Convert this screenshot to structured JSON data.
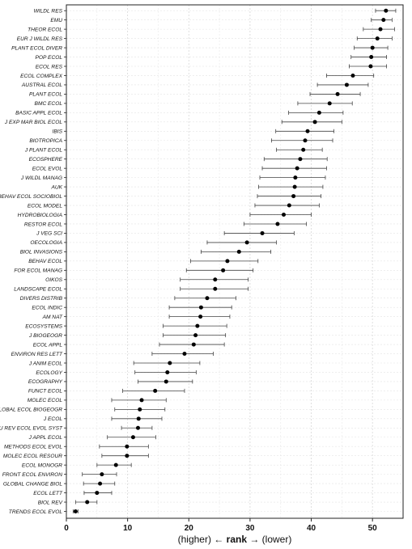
{
  "chart_data": {
    "type": "scatter",
    "xlabel": {
      "left": "(higher) ← ",
      "mid": "rank",
      "right": " → (lower)"
    },
    "xlim": [
      0,
      55
    ],
    "xticks": [
      0,
      10,
      20,
      30,
      40,
      50
    ],
    "grid": true,
    "series": [
      {
        "label": "WILDL RES",
        "mean": 52.2,
        "lo": 50.5,
        "hi": 53.8
      },
      {
        "label": "EMU",
        "mean": 51.8,
        "lo": 49.8,
        "hi": 53.2
      },
      {
        "label": "THEOR ECOL",
        "mean": 51.3,
        "lo": 48.5,
        "hi": 53.6
      },
      {
        "label": "EUR J WILDL RES",
        "mean": 50.8,
        "lo": 47.5,
        "hi": 53.2
      },
      {
        "label": "PLANT ECOL DIVER",
        "mean": 50.0,
        "lo": 47.0,
        "hi": 52.5
      },
      {
        "label": "POP ECOL",
        "mean": 49.8,
        "lo": 46.5,
        "hi": 52.3
      },
      {
        "label": "ECOL RES",
        "mean": 49.7,
        "lo": 46.2,
        "hi": 52.3
      },
      {
        "label": "ECOL COMPLEX",
        "mean": 46.8,
        "lo": 42.5,
        "hi": 50.2
      },
      {
        "label": "AUSTRAL ECOL",
        "mean": 45.8,
        "lo": 41.0,
        "hi": 49.3
      },
      {
        "label": "PLANT ECOL",
        "mean": 44.3,
        "lo": 39.8,
        "hi": 48.0
      },
      {
        "label": "BMC ECOL",
        "mean": 43.0,
        "lo": 37.8,
        "hi": 46.7
      },
      {
        "label": "BASIC APPL ECOL",
        "mean": 41.3,
        "lo": 36.3,
        "hi": 45.2
      },
      {
        "label": "J EXP MAR BIOL ECOL",
        "mean": 40.6,
        "lo": 35.2,
        "hi": 45.0
      },
      {
        "label": "IBIS",
        "mean": 39.4,
        "lo": 34.2,
        "hi": 43.7
      },
      {
        "label": "BIOTROPICA",
        "mean": 39.0,
        "lo": 33.5,
        "hi": 43.5
      },
      {
        "label": "J PLANT ECOL",
        "mean": 38.7,
        "lo": 34.3,
        "hi": 41.8
      },
      {
        "label": "ECOSPHERE",
        "mean": 38.2,
        "lo": 32.3,
        "hi": 42.6
      },
      {
        "label": "ECOL EVOL",
        "mean": 37.7,
        "lo": 32.0,
        "hi": 42.5
      },
      {
        "label": "J WILDL MANAG",
        "mean": 37.4,
        "lo": 31.6,
        "hi": 42.3
      },
      {
        "label": "AUK",
        "mean": 37.3,
        "lo": 31.4,
        "hi": 41.9
      },
      {
        "label": "BEHAV ECOL SOCIOBIOL",
        "mean": 37.1,
        "lo": 31.2,
        "hi": 41.6
      },
      {
        "label": "ECOL MODEL",
        "mean": 36.4,
        "lo": 30.8,
        "hi": 41.3
      },
      {
        "label": "HYDROBIOLOGIA",
        "mean": 35.5,
        "lo": 30.0,
        "hi": 40.0
      },
      {
        "label": "RESTOR ECOL",
        "mean": 34.5,
        "lo": 29.0,
        "hi": 39.2
      },
      {
        "label": "J VEG SCI",
        "mean": 32.0,
        "lo": 25.8,
        "hi": 37.2
      },
      {
        "label": "OECOLOGIA",
        "mean": 29.5,
        "lo": 23.0,
        "hi": 34.3
      },
      {
        "label": "BIOL INVASIONS",
        "mean": 28.2,
        "lo": 22.0,
        "hi": 33.4
      },
      {
        "label": "BEHAV ECOL",
        "mean": 26.3,
        "lo": 20.3,
        "hi": 31.3
      },
      {
        "label": "FOR ECOL MANAG",
        "mean": 25.6,
        "lo": 19.6,
        "hi": 30.5
      },
      {
        "label": "OIKOS",
        "mean": 24.3,
        "lo": 18.6,
        "hi": 29.7
      },
      {
        "label": "LANDSCAPE ECOL",
        "mean": 24.3,
        "lo": 18.6,
        "hi": 29.7
      },
      {
        "label": "DIVERS DISTRIB",
        "mean": 23.0,
        "lo": 17.7,
        "hi": 27.7
      },
      {
        "label": "ECOL INDIC",
        "mean": 22.0,
        "lo": 16.8,
        "hi": 27.0
      },
      {
        "label": "AM NAT",
        "mean": 21.9,
        "lo": 16.8,
        "hi": 26.7
      },
      {
        "label": "ECOSYSTEMS",
        "mean": 21.4,
        "lo": 15.8,
        "hi": 26.2
      },
      {
        "label": "J BIOGEOGR",
        "mean": 21.1,
        "lo": 15.8,
        "hi": 26.0
      },
      {
        "label": "ECOL APPL",
        "mean": 20.8,
        "lo": 15.2,
        "hi": 25.8
      },
      {
        "label": "ENVIRON RES LETT",
        "mean": 19.3,
        "lo": 14.0,
        "hi": 24.0
      },
      {
        "label": "J ANIM ECOL",
        "mean": 16.9,
        "lo": 11.0,
        "hi": 21.8
      },
      {
        "label": "ECOLOGY",
        "mean": 16.5,
        "lo": 11.2,
        "hi": 21.2
      },
      {
        "label": "ECOGRAPHY",
        "mean": 16.3,
        "lo": 11.7,
        "hi": 20.6
      },
      {
        "label": "FUNCT ECOL",
        "mean": 14.5,
        "lo": 9.2,
        "hi": 19.3
      },
      {
        "label": "MOLEC ECOL",
        "mean": 12.3,
        "lo": 7.4,
        "hi": 16.3
      },
      {
        "label": "GLOBAL ECOL BIOGEOGR",
        "mean": 12.0,
        "lo": 7.9,
        "hi": 16.1
      },
      {
        "label": "J ECOL",
        "mean": 11.8,
        "lo": 7.4,
        "hi": 15.6
      },
      {
        "label": "ANNU REV ECOL EVOL SYST",
        "mean": 11.7,
        "lo": 9.0,
        "hi": 14.0
      },
      {
        "label": "J APPL ECOL",
        "mean": 10.9,
        "lo": 6.7,
        "hi": 14.6
      },
      {
        "label": "METHODS ECOL EVOL",
        "mean": 9.9,
        "lo": 5.4,
        "hi": 13.4
      },
      {
        "label": "MOLEC ECOL RESOUR",
        "mean": 9.9,
        "lo": 5.8,
        "hi": 13.4
      },
      {
        "label": "ECOL MONOGR",
        "mean": 8.1,
        "lo": 5.0,
        "hi": 10.6
      },
      {
        "label": "FRONT ECOL ENVIRON",
        "mean": 5.8,
        "lo": 2.6,
        "hi": 8.2
      },
      {
        "label": "GLOBAL CHANGE BIOL",
        "mean": 5.5,
        "lo": 2.8,
        "hi": 7.9
      },
      {
        "label": "ECOL LETT",
        "mean": 5.0,
        "lo": 2.9,
        "hi": 7.4
      },
      {
        "label": "BIOL REV",
        "mean": 3.4,
        "lo": 1.5,
        "hi": 5.0
      },
      {
        "label": "TRENDS ECOL EVOL",
        "mean": 1.5,
        "lo": 1.1,
        "hi": 1.9
      }
    ]
  }
}
